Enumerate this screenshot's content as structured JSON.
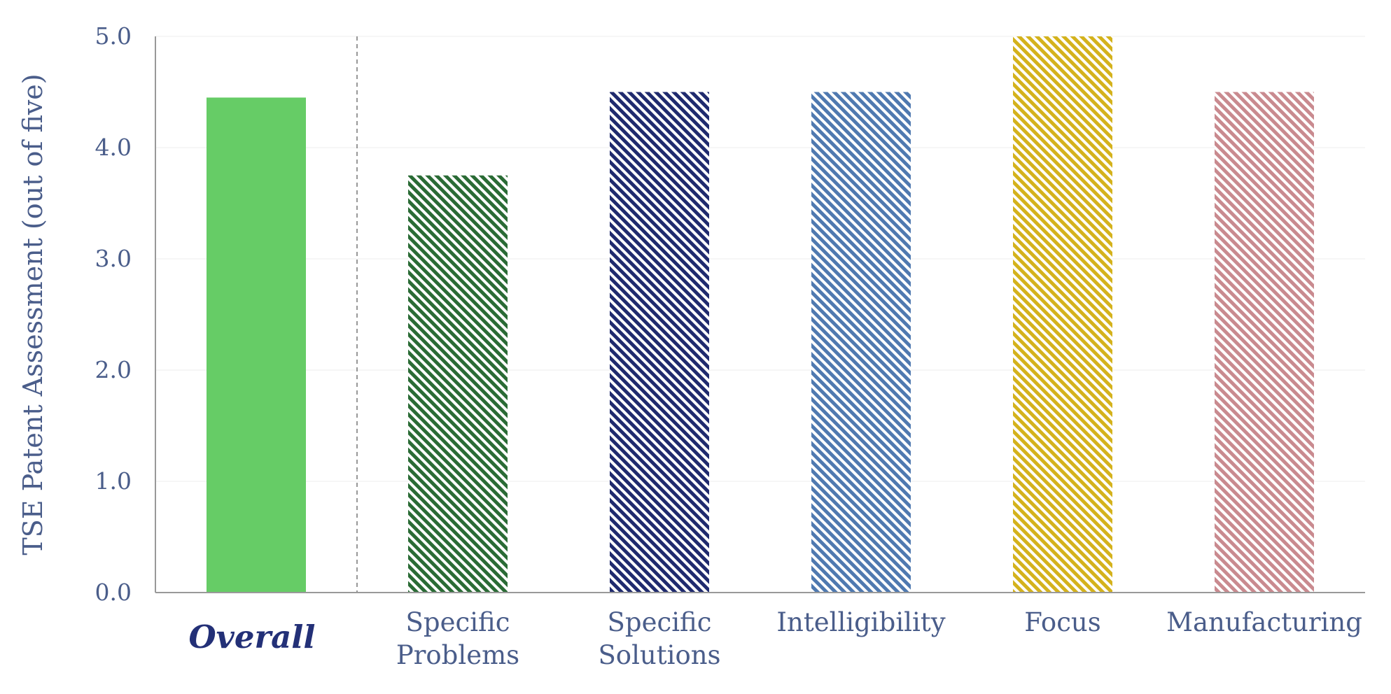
{
  "chart_data": {
    "type": "bar",
    "title": "",
    "xlabel": "",
    "ylabel": "TSE Patent Assessment (out of five)",
    "ylim": [
      0,
      5
    ],
    "yticks": [
      "0.0",
      "1.0",
      "2.0",
      "3.0",
      "4.0",
      "5.0"
    ],
    "grid": true,
    "categories": [
      {
        "label_lines": [
          "Overall"
        ],
        "value": 4.45,
        "color": "#66cc66",
        "pattern": "solid",
        "label_style": "bold-italic",
        "label_color": "#233077"
      },
      {
        "label_lines": [
          "Specific",
          "Problems"
        ],
        "value": 3.75,
        "color": "#2a6b35",
        "pattern": "hatch",
        "label_style": "normal",
        "label_color": "#4a5d8a"
      },
      {
        "label_lines": [
          "Specific",
          "Solutions"
        ],
        "value": 4.5,
        "color": "#1f2a6e",
        "pattern": "hatch",
        "label_style": "normal",
        "label_color": "#4a5d8a"
      },
      {
        "label_lines": [
          "Intelligibility"
        ],
        "value": 4.5,
        "color": "#4f79b0",
        "pattern": "hatch",
        "label_style": "normal",
        "label_color": "#4a5d8a"
      },
      {
        "label_lines": [
          "Focus"
        ],
        "value": 5.0,
        "color": "#d4b21c",
        "pattern": "hatch",
        "label_style": "normal",
        "label_color": "#4a5d8a"
      },
      {
        "label_lines": [
          "Manufacturing"
        ],
        "value": 4.5,
        "color": "#c98a8f",
        "pattern": "hatch",
        "label_style": "normal",
        "label_color": "#4a5d8a"
      }
    ],
    "separator_after_index": 0
  },
  "colors": {
    "axis": "#999999",
    "axis_text": "#4a5d8a",
    "grid": "#ececec",
    "separator": "#777777"
  }
}
